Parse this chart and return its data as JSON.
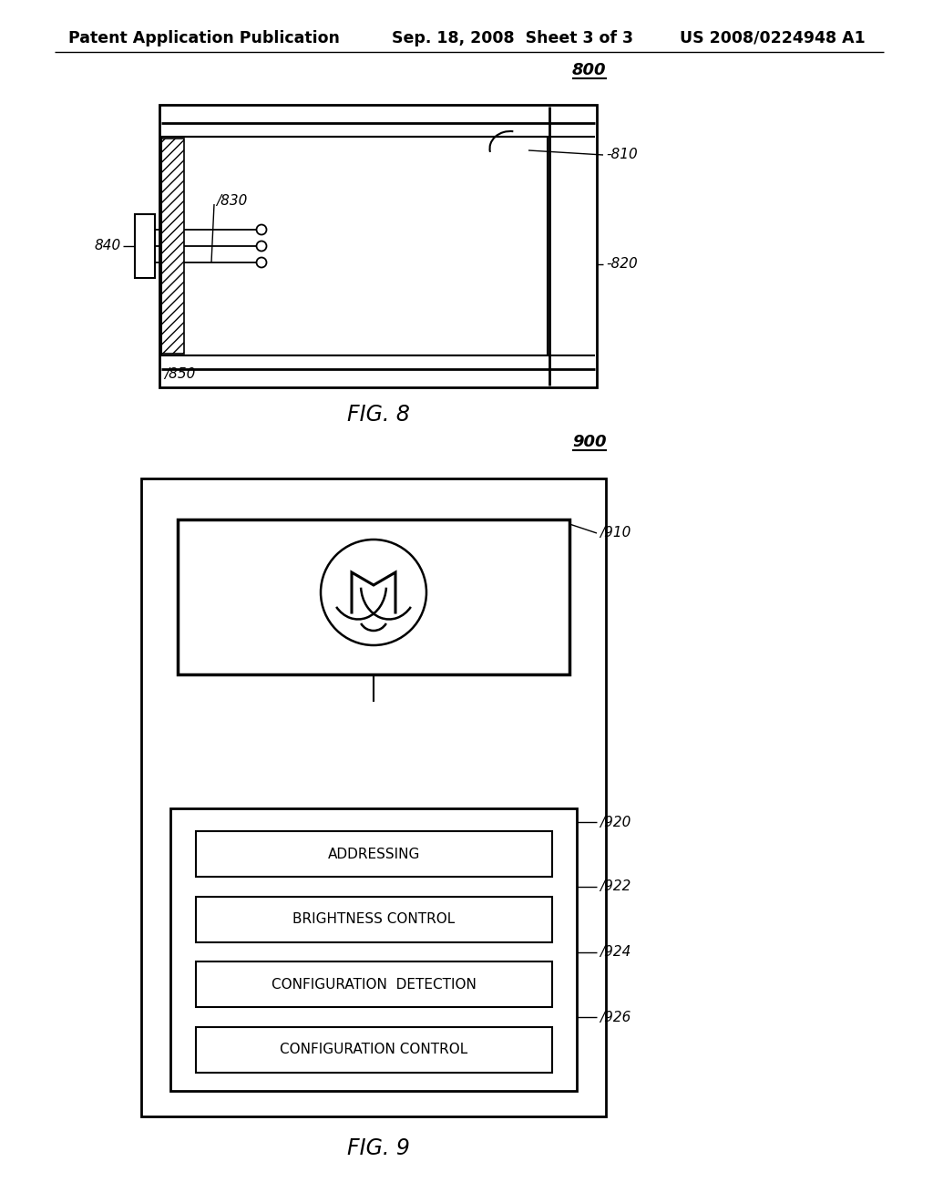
{
  "header_left": "Patent Application Publication",
  "header_mid": "Sep. 18, 2008  Sheet 3 of 3",
  "header_right": "US 2008/0224948 A1",
  "fig8_label": "800",
  "fig8_caption": "FIG. 8",
  "fig9_label": "900",
  "fig9_caption": "FIG. 9",
  "labels_800": [
    "810",
    "820",
    "830",
    "840",
    "850"
  ],
  "labels_900": [
    "910",
    "920",
    "922",
    "924",
    "926"
  ],
  "boxes_900": [
    "ADDRESSING",
    "BRIGHTNESS CONTROL",
    "CONFIGURATION  DETECTION",
    "CONFIGURATION CONTROL"
  ],
  "bg_color": "#ffffff"
}
